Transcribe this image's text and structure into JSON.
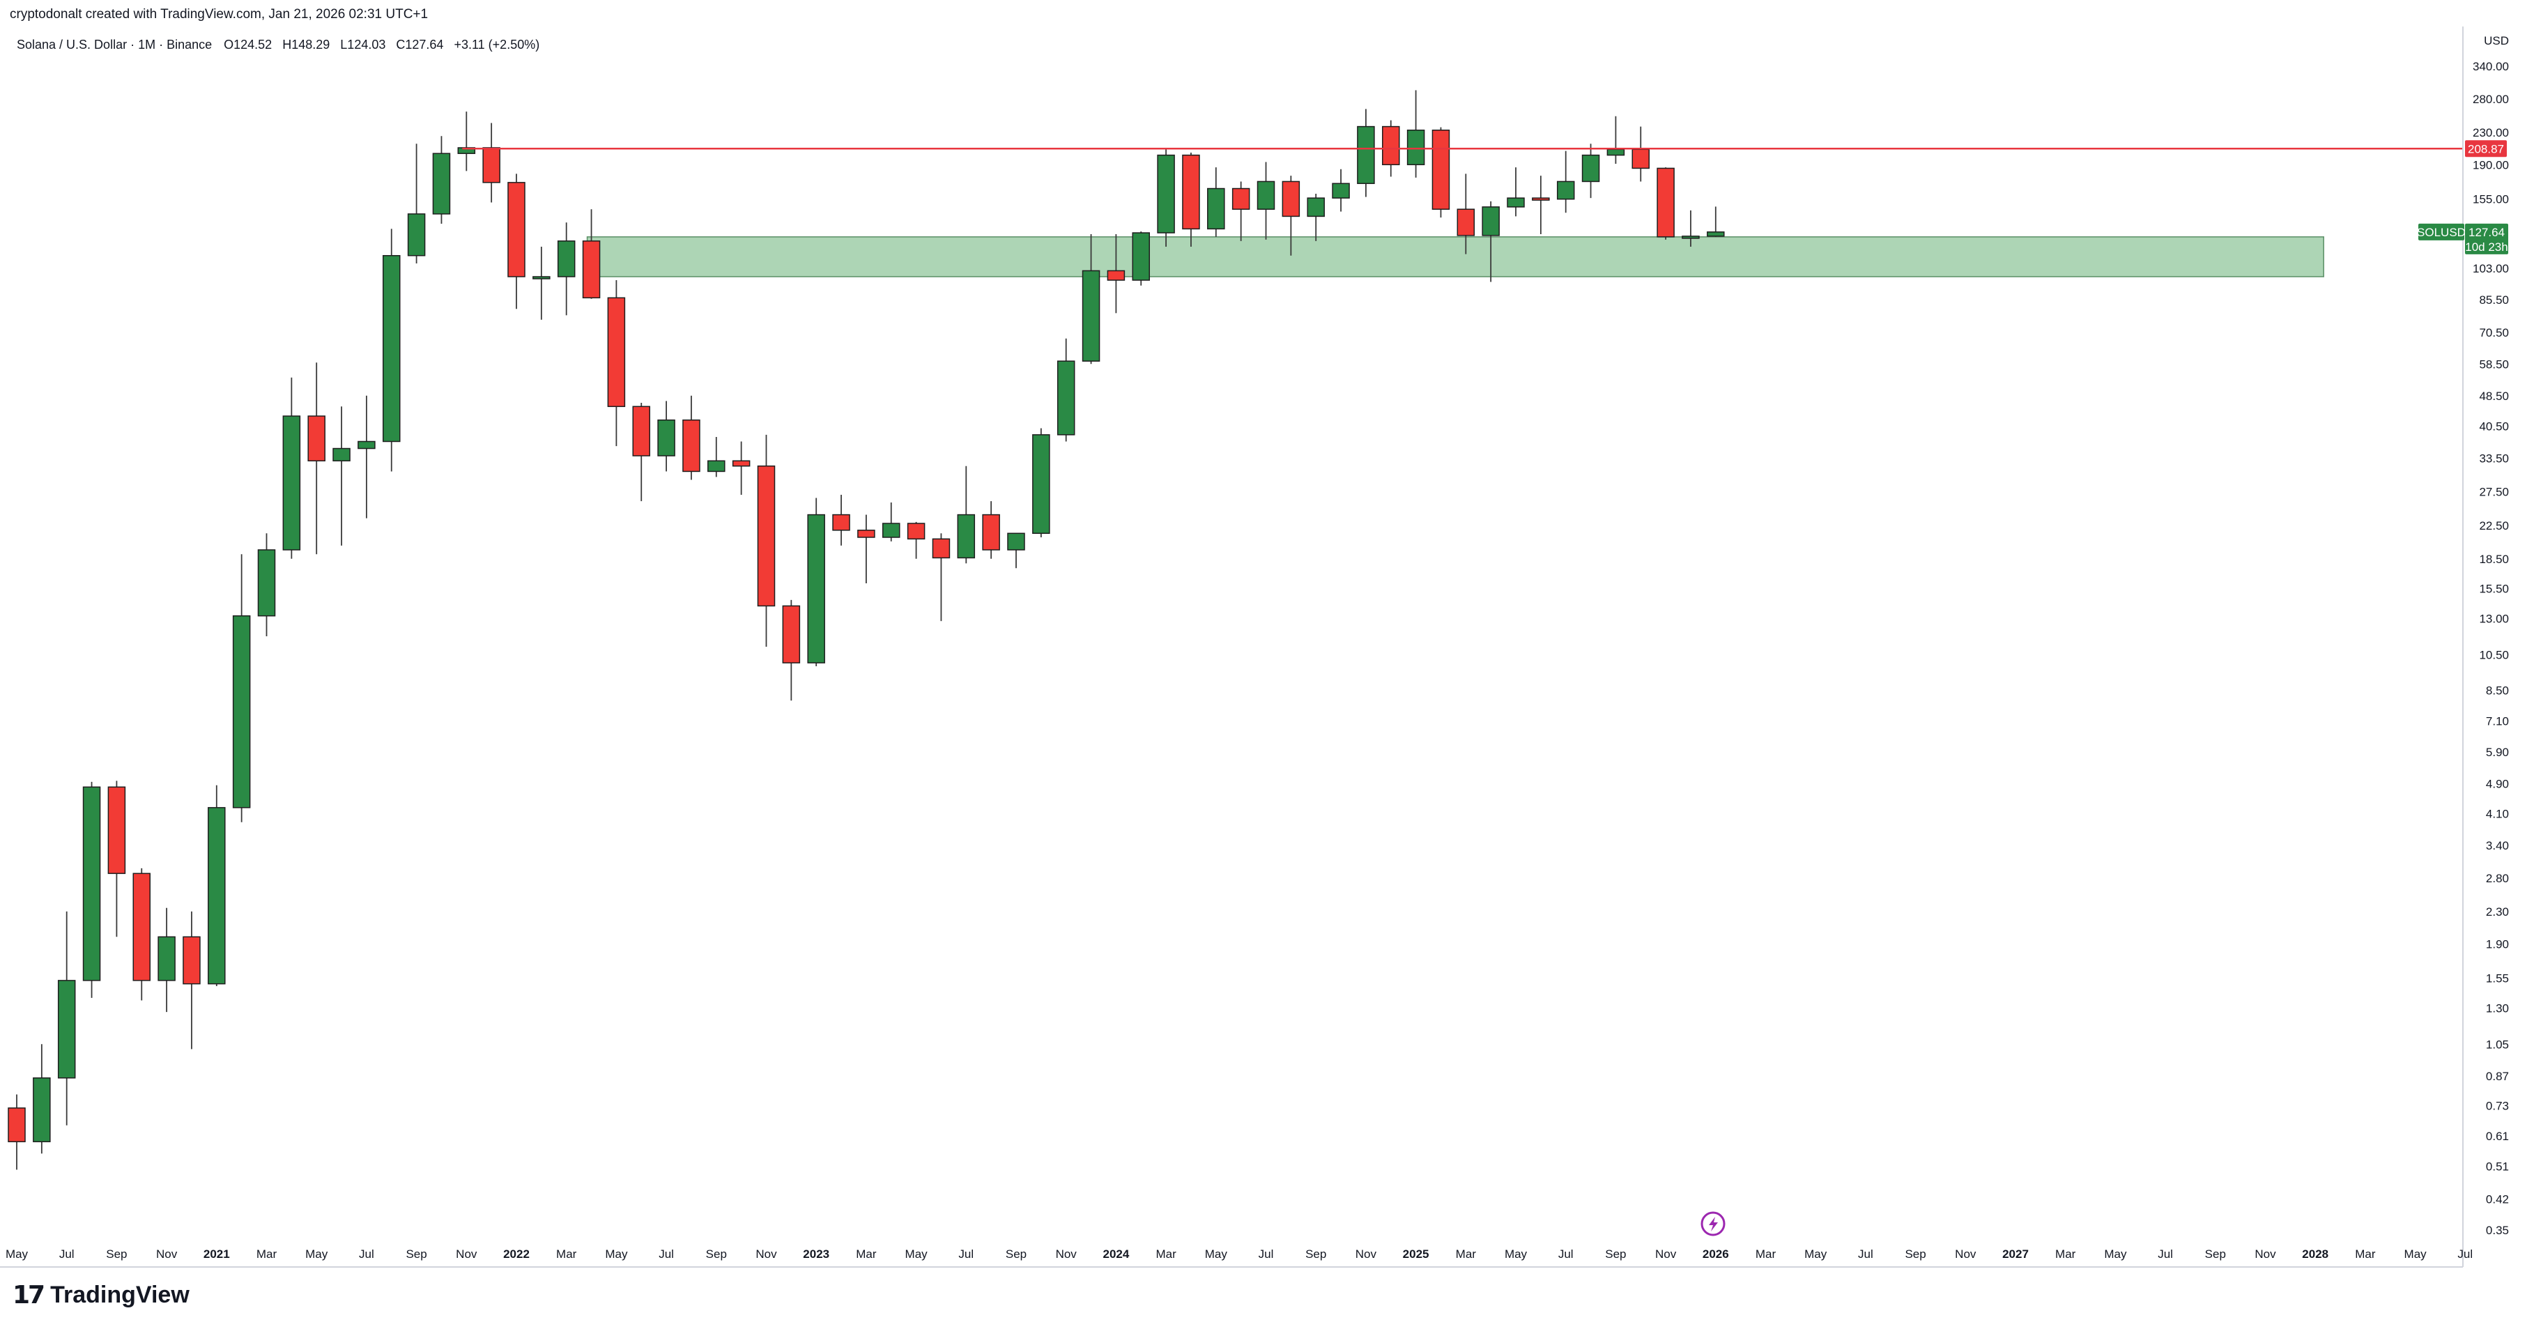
{
  "header": {
    "attribution": "cryptodonalt created with TradingView.com, Jan 21, 2026 02:31 UTC+1"
  },
  "legend": {
    "symbol": "Solana / U.S. Dollar · 1M · Binance",
    "open": "O124.52",
    "high": "H148.29",
    "low": "L124.03",
    "close": "C127.64",
    "change": "+3.11 (+2.50%)"
  },
  "axis": {
    "currency": "USD",
    "ticks": [
      "340.00",
      "280.00",
      "230.00",
      "190.00",
      "155.00",
      "127.64",
      "103.00",
      "85.50",
      "70.50",
      "58.50",
      "48.50",
      "40.50",
      "33.50",
      "27.50",
      "22.50",
      "18.50",
      "15.50",
      "13.00",
      "10.50",
      "8.50",
      "7.10",
      "5.90",
      "4.90",
      "4.10",
      "3.40",
      "2.80",
      "2.30",
      "1.90",
      "1.55",
      "1.30",
      "1.05",
      "0.87",
      "0.73",
      "0.61",
      "0.51",
      "0.42",
      "0.35"
    ]
  },
  "price_tags": {
    "resistance": "208.87",
    "symbol": "SOLUSD",
    "last": "127.64",
    "countdown": "10d 23h"
  },
  "footer": {
    "logo_mark": "17",
    "logo_text": "TradingView"
  },
  "colors": {
    "up": "#2a8a45",
    "down": "#f23b35",
    "zone": "#a9d3b1",
    "resistance": "#e8363f"
  },
  "chart_data": {
    "type": "candlestick",
    "timeframe": "1M",
    "scale": "log",
    "ylim": [
      0.35,
      340
    ],
    "x_range": [
      "2020-05",
      "2028-07"
    ],
    "x_ticks": [
      "May",
      "Jul",
      "Sep",
      "Nov",
      "2021",
      "Mar",
      "May",
      "Jul",
      "Sep",
      "Nov",
      "2022",
      "Mar",
      "May",
      "Jul",
      "Sep",
      "Nov",
      "2023",
      "Mar",
      "May",
      "Jul",
      "Sep",
      "Nov",
      "2024",
      "Mar",
      "May",
      "Jul",
      "Sep",
      "Nov",
      "2025",
      "Mar",
      "May",
      "Jul",
      "Sep",
      "Nov",
      "2026",
      "Mar",
      "May",
      "Jul",
      "Sep",
      "Nov",
      "2027",
      "Mar",
      "May",
      "Jul",
      "Sep",
      "Nov",
      "2028",
      "Mar",
      "May",
      "Jul"
    ],
    "resistance_line": 208.87,
    "support_zone": {
      "from": "2022-04",
      "to": "2028-01",
      "low": 98,
      "high": 124
    },
    "candles": [
      {
        "t": "2020-05",
        "o": 0.72,
        "h": 0.78,
        "l": 0.5,
        "c": 0.59
      },
      {
        "t": "2020-06",
        "o": 0.59,
        "h": 1.05,
        "l": 0.55,
        "c": 0.86
      },
      {
        "t": "2020-07",
        "o": 0.86,
        "h": 2.3,
        "l": 0.65,
        "c": 1.53
      },
      {
        "t": "2020-08",
        "o": 1.53,
        "h": 4.95,
        "l": 1.38,
        "c": 4.8
      },
      {
        "t": "2020-09",
        "o": 4.8,
        "h": 4.98,
        "l": 1.98,
        "c": 2.88
      },
      {
        "t": "2020-10",
        "o": 2.88,
        "h": 2.97,
        "l": 1.36,
        "c": 1.53
      },
      {
        "t": "2020-11",
        "o": 1.53,
        "h": 2.35,
        "l": 1.27,
        "c": 1.98
      },
      {
        "t": "2020-12",
        "o": 1.98,
        "h": 2.3,
        "l": 1.02,
        "c": 1.5
      },
      {
        "t": "2021-01",
        "o": 1.5,
        "h": 4.85,
        "l": 1.48,
        "c": 4.25
      },
      {
        "t": "2021-02",
        "o": 4.25,
        "h": 19.0,
        "l": 3.9,
        "c": 13.2
      },
      {
        "t": "2021-03",
        "o": 13.2,
        "h": 21.5,
        "l": 11.7,
        "c": 19.5
      },
      {
        "t": "2021-04",
        "o": 19.5,
        "h": 54.0,
        "l": 18.5,
        "c": 43.0
      },
      {
        "t": "2021-05",
        "o": 43.0,
        "h": 59.0,
        "l": 19.0,
        "c": 33.0
      },
      {
        "t": "2021-06",
        "o": 33.0,
        "h": 45.5,
        "l": 20.0,
        "c": 35.5
      },
      {
        "t": "2021-07",
        "o": 35.5,
        "h": 48.5,
        "l": 23.5,
        "c": 37.0
      },
      {
        "t": "2021-08",
        "o": 37.0,
        "h": 130.0,
        "l": 31.0,
        "c": 111.0
      },
      {
        "t": "2021-09",
        "o": 111.0,
        "h": 215.0,
        "l": 106.0,
        "c": 142.0
      },
      {
        "t": "2021-10",
        "o": 142.0,
        "h": 225.0,
        "l": 134.0,
        "c": 203.0
      },
      {
        "t": "2021-11",
        "o": 203.0,
        "h": 260.0,
        "l": 183.0,
        "c": 210.0
      },
      {
        "t": "2021-12",
        "o": 210.0,
        "h": 243.0,
        "l": 152.0,
        "c": 171.0
      },
      {
        "t": "2022-01",
        "o": 171.0,
        "h": 180.0,
        "l": 81.0,
        "c": 98.0
      },
      {
        "t": "2022-02",
        "o": 98.0,
        "h": 117.0,
        "l": 76.0,
        "c": 98.0
      },
      {
        "t": "2022-03",
        "o": 98.0,
        "h": 135.0,
        "l": 78.0,
        "c": 121.0
      },
      {
        "t": "2022-04",
        "o": 121.0,
        "h": 146.0,
        "l": 86.0,
        "c": 86.5
      },
      {
        "t": "2022-05",
        "o": 86.5,
        "h": 96.0,
        "l": 36.0,
        "c": 45.5
      },
      {
        "t": "2022-06",
        "o": 45.5,
        "h": 46.5,
        "l": 26.0,
        "c": 34.0
      },
      {
        "t": "2022-07",
        "o": 34.0,
        "h": 47.0,
        "l": 31.0,
        "c": 42.0
      },
      {
        "t": "2022-08",
        "o": 42.0,
        "h": 48.5,
        "l": 29.5,
        "c": 31.0
      },
      {
        "t": "2022-09",
        "o": 31.0,
        "h": 38.0,
        "l": 30.0,
        "c": 33.0
      },
      {
        "t": "2022-10",
        "o": 33.0,
        "h": 37.0,
        "l": 27.0,
        "c": 32.0
      },
      {
        "t": "2022-11",
        "o": 32.0,
        "h": 38.5,
        "l": 11.0,
        "c": 14.0
      },
      {
        "t": "2022-12",
        "o": 14.0,
        "h": 14.5,
        "l": 8.0,
        "c": 10.0
      },
      {
        "t": "2023-01",
        "o": 10.0,
        "h": 26.5,
        "l": 9.8,
        "c": 24.0
      },
      {
        "t": "2023-02",
        "o": 24.0,
        "h": 27.0,
        "l": 20.0,
        "c": 21.9
      },
      {
        "t": "2023-03",
        "o": 21.9,
        "h": 24.0,
        "l": 16.0,
        "c": 21.0
      },
      {
        "t": "2023-04",
        "o": 21.0,
        "h": 25.8,
        "l": 20.5,
        "c": 22.8
      },
      {
        "t": "2023-05",
        "o": 22.8,
        "h": 23.0,
        "l": 18.5,
        "c": 20.8
      },
      {
        "t": "2023-06",
        "o": 20.8,
        "h": 21.5,
        "l": 12.8,
        "c": 18.6
      },
      {
        "t": "2023-07",
        "o": 18.6,
        "h": 32.0,
        "l": 18.0,
        "c": 24.0
      },
      {
        "t": "2023-08",
        "o": 24.0,
        "h": 26.0,
        "l": 18.5,
        "c": 19.5
      },
      {
        "t": "2023-09",
        "o": 19.5,
        "h": 21.5,
        "l": 17.5,
        "c": 21.5
      },
      {
        "t": "2023-10",
        "o": 21.5,
        "h": 40.0,
        "l": 21.0,
        "c": 38.5
      },
      {
        "t": "2023-11",
        "o": 38.5,
        "h": 68.0,
        "l": 37.0,
        "c": 59.5
      },
      {
        "t": "2023-12",
        "o": 59.5,
        "h": 126.0,
        "l": 58.5,
        "c": 101.5
      },
      {
        "t": "2024-01",
        "o": 101.5,
        "h": 126.0,
        "l": 79.0,
        "c": 96.0
      },
      {
        "t": "2024-02",
        "o": 96.0,
        "h": 128.0,
        "l": 93.0,
        "c": 127.0
      },
      {
        "t": "2024-03",
        "o": 127.0,
        "h": 210.0,
        "l": 117.0,
        "c": 201.0
      },
      {
        "t": "2024-04",
        "o": 201.0,
        "h": 204.0,
        "l": 117.0,
        "c": 130.0
      },
      {
        "t": "2024-05",
        "o": 130.0,
        "h": 187.0,
        "l": 124.0,
        "c": 165.0
      },
      {
        "t": "2024-06",
        "o": 165.0,
        "h": 172.0,
        "l": 121.0,
        "c": 146.0
      },
      {
        "t": "2024-07",
        "o": 146.0,
        "h": 193.0,
        "l": 122.0,
        "c": 172.0
      },
      {
        "t": "2024-08",
        "o": 172.0,
        "h": 178.0,
        "l": 111.0,
        "c": 140.0
      },
      {
        "t": "2024-09",
        "o": 140.0,
        "h": 160.0,
        "l": 121.0,
        "c": 156.0
      },
      {
        "t": "2024-10",
        "o": 156.0,
        "h": 185.0,
        "l": 144.0,
        "c": 170.0
      },
      {
        "t": "2024-11",
        "o": 170.0,
        "h": 264.0,
        "l": 157.0,
        "c": 238.0
      },
      {
        "t": "2024-12",
        "o": 238.0,
        "h": 247.0,
        "l": 177.0,
        "c": 190.0
      },
      {
        "t": "2025-01",
        "o": 190.0,
        "h": 295.0,
        "l": 176.0,
        "c": 233.0
      },
      {
        "t": "2025-02",
        "o": 233.0,
        "h": 237.0,
        "l": 139.0,
        "c": 146.0
      },
      {
        "t": "2025-03",
        "o": 146.0,
        "h": 180.0,
        "l": 112.0,
        "c": 125.0
      },
      {
        "t": "2025-04",
        "o": 125.0,
        "h": 153.0,
        "l": 95.0,
        "c": 148.0
      },
      {
        "t": "2025-05",
        "o": 148.0,
        "h": 187.0,
        "l": 140.0,
        "c": 156.0
      },
      {
        "t": "2025-06",
        "o": 156.0,
        "h": 178.0,
        "l": 126.0,
        "c": 155.0
      },
      {
        "t": "2025-07",
        "o": 155.0,
        "h": 206.0,
        "l": 143.0,
        "c": 172.0
      },
      {
        "t": "2025-08",
        "o": 172.0,
        "h": 215.0,
        "l": 156.0,
        "c": 201.0
      },
      {
        "t": "2025-09",
        "o": 201.0,
        "h": 253.0,
        "l": 191.0,
        "c": 208.0
      },
      {
        "t": "2025-10",
        "o": 208.0,
        "h": 238.0,
        "l": 172.0,
        "c": 186.0
      },
      {
        "t": "2025-11",
        "o": 186.0,
        "h": 187.0,
        "l": 122.0,
        "c": 124.0
      },
      {
        "t": "2025-12",
        "o": 124.0,
        "h": 145.0,
        "l": 117.0,
        "c": 124.5
      },
      {
        "t": "2026-01",
        "o": 124.52,
        "h": 148.29,
        "l": 124.03,
        "c": 127.64
      }
    ]
  }
}
